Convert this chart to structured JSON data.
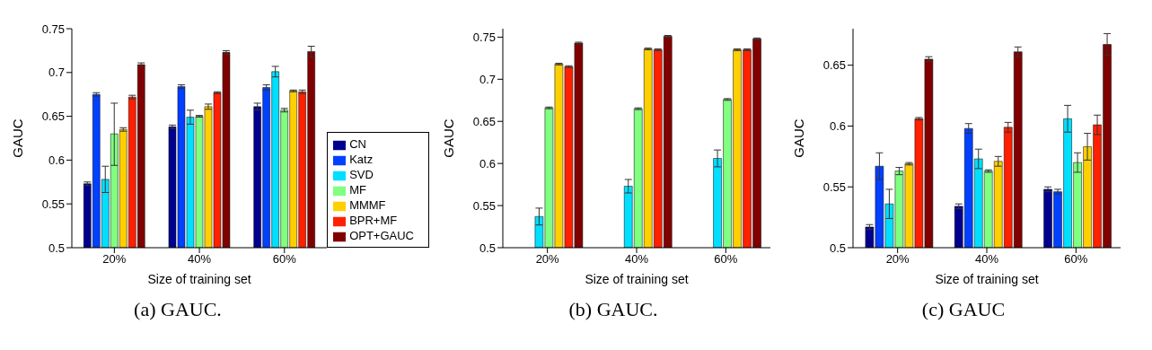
{
  "chart_data": [
    {
      "type": "bar",
      "xlabel": "Size of training set",
      "ylabel": "GAUC",
      "annotations": [
        "(a) GAUC."
      ],
      "categories": [
        "20%",
        "40%",
        "60%"
      ],
      "ylim": [
        0.5,
        0.75
      ],
      "yticks": [
        0.5,
        0.55,
        0.6,
        0.65,
        0.7,
        0.75
      ],
      "legend": "bottom right",
      "series": [
        {
          "name": "CN",
          "color": "#00008f",
          "values": [
            0.573,
            0.638,
            0.661
          ],
          "errors": [
            0.002,
            0.002,
            0.004
          ]
        },
        {
          "name": "Katz",
          "color": "#0040ff",
          "values": [
            0.675,
            0.684,
            0.683
          ],
          "errors": [
            0.002,
            0.002,
            0.003
          ]
        },
        {
          "name": "SVD",
          "color": "#00dfff",
          "values": [
            0.578,
            0.649,
            0.701
          ],
          "errors": [
            0.015,
            0.008,
            0.006
          ]
        },
        {
          "name": "MF",
          "color": "#80ff80",
          "values": [
            0.63,
            0.65,
            0.657
          ],
          "errors": [
            [
              0.594,
              0.665
            ],
            0.001,
            0.002
          ]
        },
        {
          "name": "MMMF",
          "color": "#ffcf00",
          "values": [
            0.635,
            0.661,
            0.679
          ],
          "errors": [
            0.002,
            0.003,
            0.001
          ]
        },
        {
          "name": "BPR+MF",
          "color": "#ff2000",
          "values": [
            0.672,
            0.677,
            0.678
          ],
          "errors": [
            0.002,
            0.001,
            0.002
          ]
        },
        {
          "name": "OPT+GAUC",
          "color": "#800000",
          "values": [
            0.709,
            0.723,
            0.724
          ],
          "errors": [
            0.002,
            0.002,
            0.006
          ]
        }
      ]
    },
    {
      "type": "bar",
      "xlabel": "Size of training set",
      "ylabel": "GAUC",
      "annotations": [
        "(b) GAUC."
      ],
      "categories": [
        "20%",
        "40%",
        "60%"
      ],
      "ylim": [
        0.5,
        0.76
      ],
      "yticks": [
        0.5,
        0.55,
        0.6,
        0.65,
        0.7,
        0.75
      ],
      "series": [
        {
          "color": "#00008f",
          "values": [
            null,
            null,
            null
          ]
        },
        {
          "color": "#0040ff",
          "values": [
            null,
            null,
            null
          ]
        },
        {
          "color": "#00dfff",
          "values": [
            0.537,
            0.573,
            0.606
          ],
          "errors": [
            0.01,
            0.008,
            0.01
          ]
        },
        {
          "color": "#80ff80",
          "values": [
            0.666,
            0.665,
            0.676
          ],
          "errors": [
            0.001,
            0.001,
            0.001
          ]
        },
        {
          "color": "#ffcf00",
          "values": [
            0.718,
            0.736,
            0.735
          ],
          "errors": [
            0.001,
            0.001,
            0.001
          ]
        },
        {
          "color": "#ff2000",
          "values": [
            0.715,
            0.735,
            0.735
          ],
          "errors": [
            0.001,
            0.001,
            0.001
          ]
        },
        {
          "color": "#800000",
          "values": [
            0.743,
            0.751,
            0.748
          ],
          "errors": [
            0.001,
            0.001,
            0.001
          ]
        }
      ]
    },
    {
      "type": "bar",
      "xlabel": "Size of training set",
      "ylabel": "GAUC",
      "annotations": [
        "(c) GAUC"
      ],
      "categories": [
        "20%",
        "40%",
        "60%"
      ],
      "ylim": [
        0.5,
        0.68
      ],
      "yticks": [
        0.5,
        0.55,
        0.6,
        0.65
      ],
      "series": [
        {
          "color": "#00008f",
          "values": [
            0.517,
            0.534,
            0.548
          ],
          "errors": [
            0.002,
            0.002,
            0.002
          ]
        },
        {
          "color": "#0040ff",
          "values": [
            0.567,
            0.598,
            0.546
          ],
          "errors": [
            0.011,
            0.004,
            0.002
          ]
        },
        {
          "color": "#00dfff",
          "values": [
            0.536,
            0.573,
            0.606
          ],
          "errors": [
            0.012,
            0.008,
            0.011
          ]
        },
        {
          "color": "#80ff80",
          "values": [
            0.563,
            0.563,
            0.57
          ],
          "errors": [
            0.003,
            0.001,
            0.008
          ]
        },
        {
          "color": "#ffcf00",
          "values": [
            0.569,
            0.571,
            0.583
          ],
          "errors": [
            0.001,
            0.004,
            0.011
          ]
        },
        {
          "color": "#ff2000",
          "values": [
            0.606,
            0.599,
            0.601
          ],
          "errors": [
            0.001,
            0.004,
            0.008
          ]
        },
        {
          "color": "#800000",
          "values": [
            0.655,
            0.661,
            0.667
          ],
          "errors": [
            0.002,
            0.004,
            0.009
          ]
        }
      ]
    }
  ]
}
